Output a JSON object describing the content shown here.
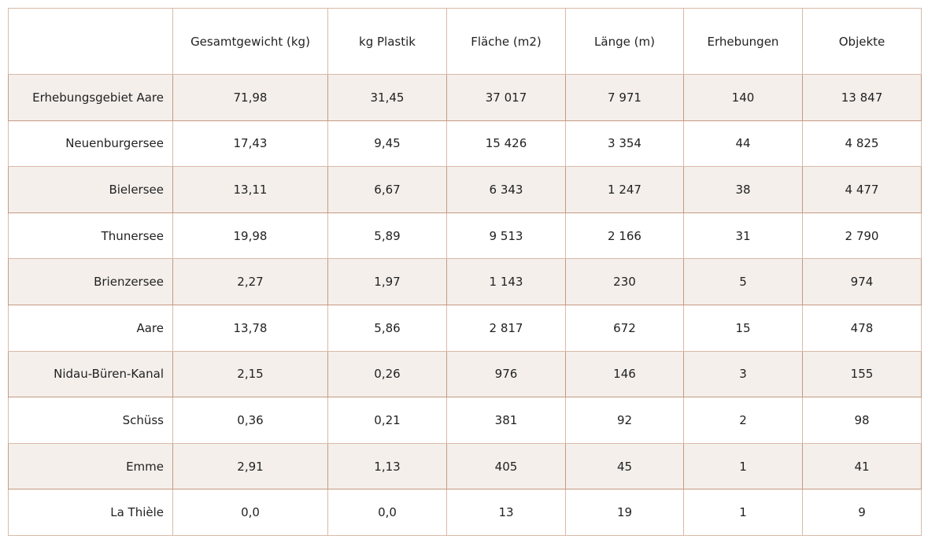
{
  "table": {
    "columns": [
      "",
      "Gesamtgewicht (kg)",
      "kg Plastik",
      "Fläche (m2)",
      "Länge (m)",
      "Erhebungen",
      "Objekte"
    ],
    "rows": [
      [
        "Erhebungsgebiet Aare",
        "71,98",
        "31,45",
        "37 017",
        "7 971",
        "140",
        "13 847"
      ],
      [
        "Neuenburgersee",
        "17,43",
        "9,45",
        "15 426",
        "3 354",
        "44",
        "4 825"
      ],
      [
        "Bielersee",
        "13,11",
        "6,67",
        "6 343",
        "1 247",
        "38",
        "4 477"
      ],
      [
        "Thunersee",
        "19,98",
        "5,89",
        "9 513",
        "2 166",
        "31",
        "2 790"
      ],
      [
        "Brienzersee",
        "2,27",
        "1,97",
        "1 143",
        "230",
        "5",
        "974"
      ],
      [
        "Aare",
        "13,78",
        "5,86",
        "2 817",
        "672",
        "15",
        "478"
      ],
      [
        "Nidau-Büren-Kanal",
        "2,15",
        "0,26",
        "976",
        "146",
        "3",
        "155"
      ],
      [
        "Schüss",
        "0,36",
        "0,21",
        "381",
        "92",
        "2",
        "98"
      ],
      [
        "Emme",
        "2,91",
        "1,13",
        "405",
        "45",
        "1",
        "41"
      ],
      [
        "La Thièle",
        "0,0",
        "0,0",
        "13",
        "19",
        "1",
        "9"
      ]
    ],
    "colors": {
      "shaded_row_background": "#f4efeb",
      "border": "#d9b9a8",
      "shaded_border": "#c49a82",
      "text": "#222222"
    }
  }
}
